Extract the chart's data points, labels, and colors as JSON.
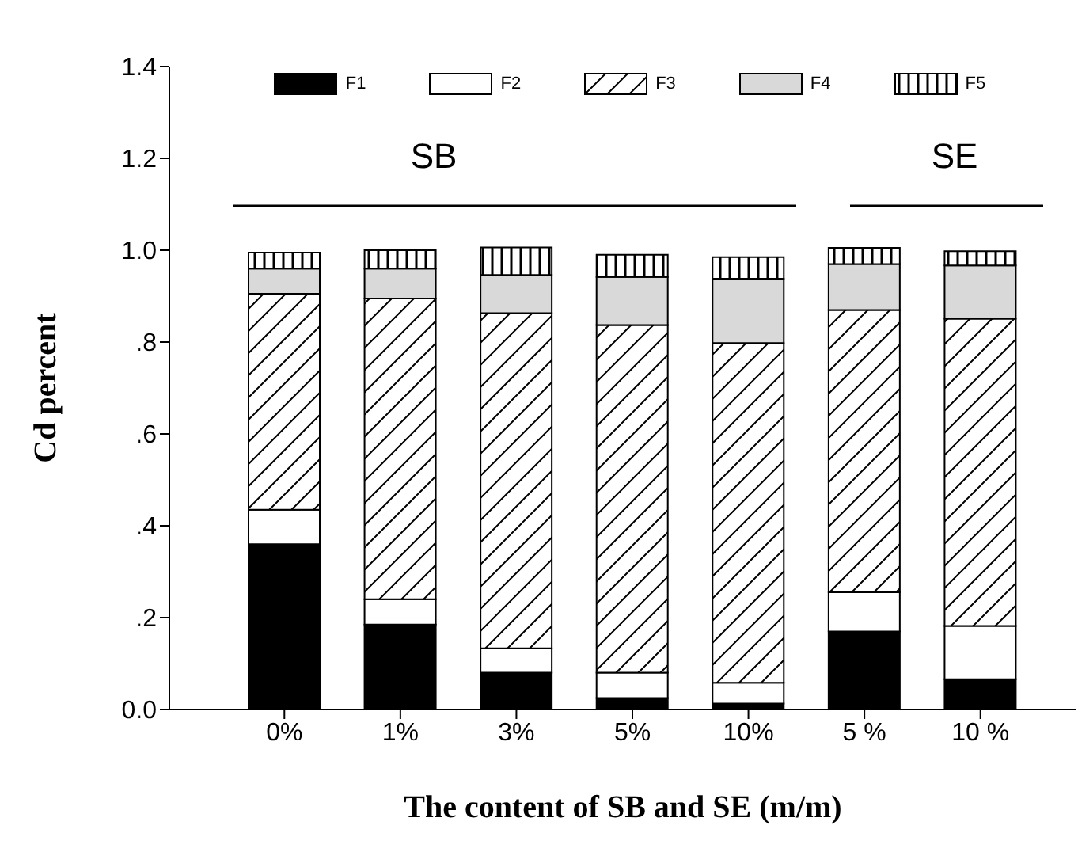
{
  "chart_data": {
    "type": "bar",
    "stacked": true,
    "xlabel": "The content of SB and SE  (m/m)",
    "ylabel": "Cd percent",
    "categories": [
      "0%",
      "1%",
      "3%",
      "5%",
      "10%",
      "5 %",
      "10 %"
    ],
    "series": [
      {
        "name": "F1",
        "color": "#000000",
        "values": [
          0.36,
          0.185,
          0.08,
          0.025,
          0.013,
          0.17,
          0.066
        ]
      },
      {
        "name": "F2",
        "color": "#ffffff",
        "values": [
          0.075,
          0.055,
          0.053,
          0.055,
          0.045,
          0.085,
          0.116
        ]
      },
      {
        "name": "F3",
        "color": "#000000",
        "values": [
          0.47,
          0.655,
          0.73,
          0.757,
          0.74,
          0.615,
          0.669
        ]
      },
      {
        "name": "F4",
        "color": "#d9d9d9",
        "values": [
          0.055,
          0.065,
          0.083,
          0.105,
          0.14,
          0.1,
          0.116
        ]
      },
      {
        "name": "F5",
        "color": "#000000",
        "values": [
          0.035,
          0.04,
          0.06,
          0.048,
          0.047,
          0.035,
          0.031
        ]
      }
    ],
    "ylim": [
      0,
      1.4
    ],
    "yticks": [
      {
        "value": 0,
        "label": "0.0"
      },
      {
        "value": 0.2,
        "label": ".2"
      },
      {
        "value": 0.4,
        "label": ".4"
      },
      {
        "value": 0.6,
        "label": ".6"
      },
      {
        "value": 0.8,
        "label": ".8"
      },
      {
        "value": 1,
        "label": "1.0"
      },
      {
        "value": 1.2,
        "label": "1.2"
      },
      {
        "value": 1.4,
        "label": "1.4"
      }
    ],
    "annotations": [
      "SB",
      "SE"
    ],
    "grid": false,
    "legend": "top"
  }
}
